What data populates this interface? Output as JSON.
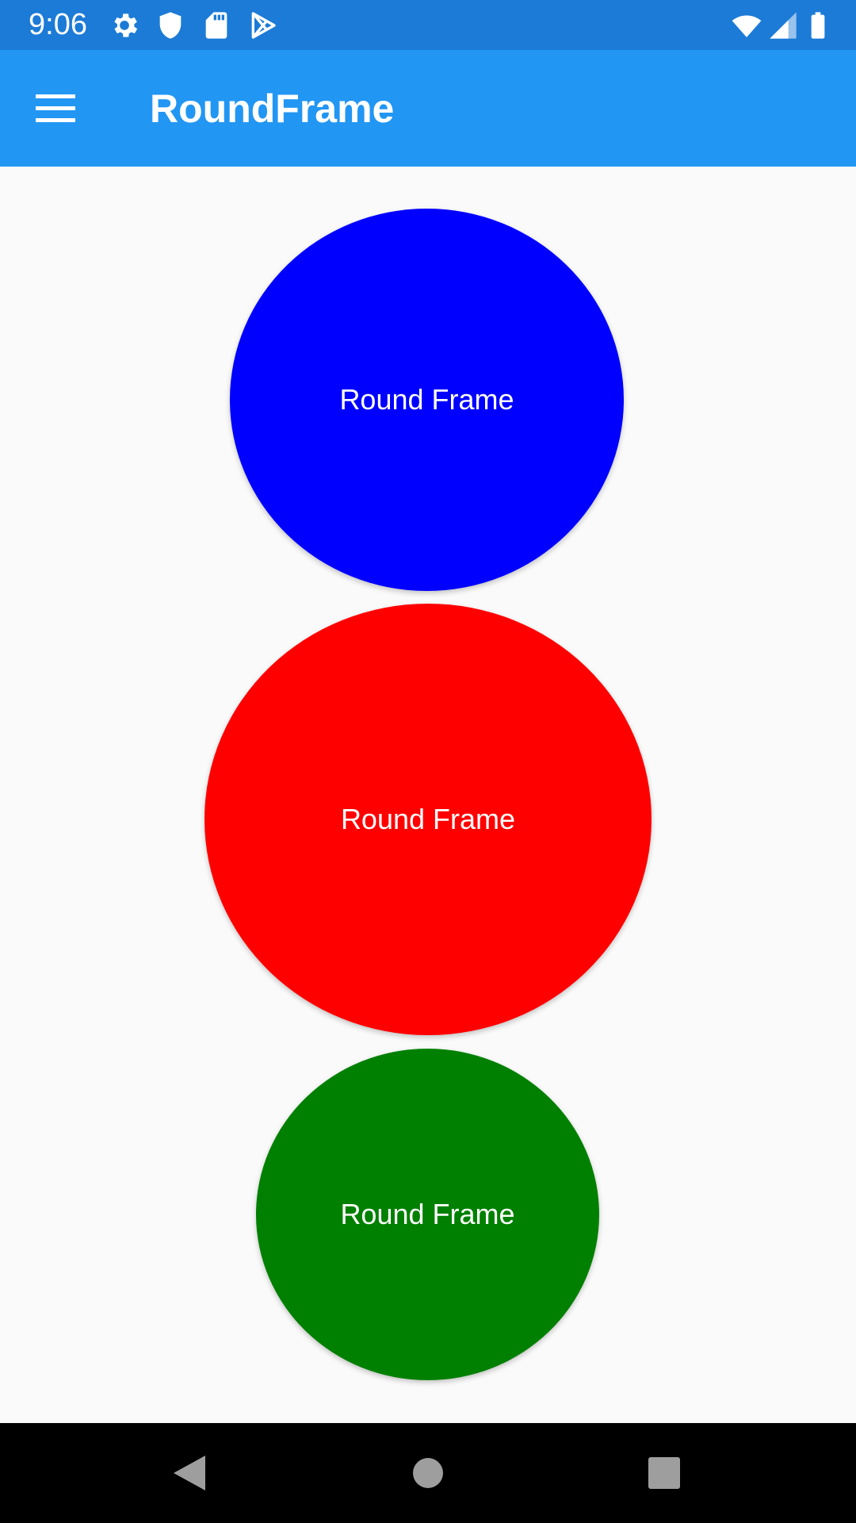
{
  "status_bar": {
    "time": "9:06",
    "left_icons": [
      "gear-icon",
      "shield-icon",
      "sd-card-icon",
      "play-store-icon"
    ],
    "right_icons": [
      "wifi-icon",
      "signal-icon",
      "battery-icon"
    ]
  },
  "app_bar": {
    "title": "RoundFrame",
    "menu_icon": "hamburger-menu-icon"
  },
  "frames": [
    {
      "label": "Round Frame",
      "color": "#0000FF"
    },
    {
      "label": "Round Frame",
      "color": "#FF0000"
    },
    {
      "label": "Round Frame",
      "color": "#008000"
    }
  ],
  "nav_bar": {
    "icons": [
      "back-icon",
      "home-icon",
      "recents-icon"
    ]
  },
  "colors": {
    "status_bar": "#1C7BD6",
    "app_bar": "#2296F3",
    "background": "#FAFAFA"
  }
}
